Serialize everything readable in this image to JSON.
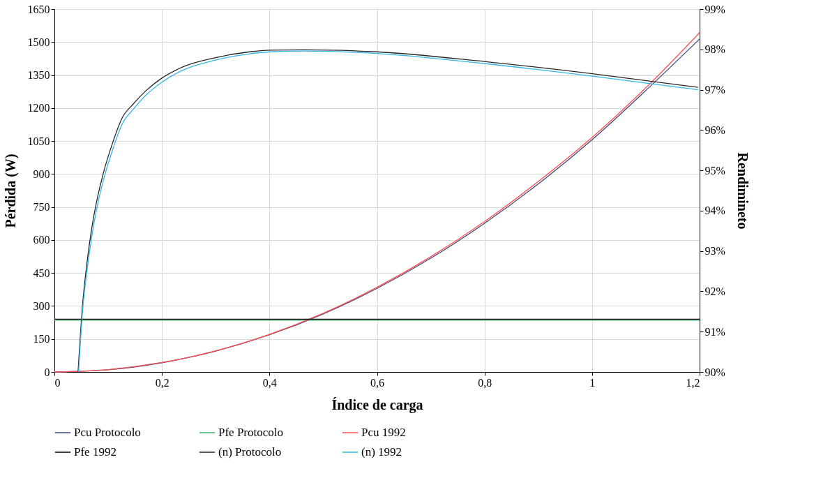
{
  "chart_data": {
    "type": "line",
    "xlabel": "Índice de carga",
    "ylabel": "Pérdida (W)",
    "y2label": "Rendimineto",
    "xlim": [
      0,
      1.2
    ],
    "xticks": [
      0,
      {
        "value": 0.2,
        "label": "0,2"
      },
      {
        "value": 0.4,
        "label": "0,4"
      },
      {
        "value": 0.6,
        "label": "0,6"
      },
      {
        "value": 0.8,
        "label": "0,8"
      },
      1,
      {
        "value": 1.2,
        "label": "1,2"
      }
    ],
    "ylim": [
      0,
      1650
    ],
    "yticks": [
      0,
      150,
      300,
      450,
      600,
      750,
      900,
      1050,
      1200,
      1350,
      1500,
      1650
    ],
    "y2lim": [
      90,
      99
    ],
    "y2ticks": [
      {
        "value": 90,
        "label": "90%"
      },
      {
        "value": 91,
        "label": "91%"
      },
      {
        "value": 92,
        "label": "92%"
      },
      {
        "value": 93,
        "label": "93%"
      },
      {
        "value": 94,
        "label": "94%"
      },
      {
        "value": 95,
        "label": "95%"
      },
      {
        "value": 96,
        "label": "96%"
      },
      {
        "value": 97,
        "label": "97%"
      },
      {
        "value": 98,
        "label": "98%"
      },
      {
        "value": 99,
        "label": "99%"
      }
    ],
    "grid": true,
    "legend": "bottom",
    "series": [
      {
        "name": "Pcu Protocolo",
        "color": "#404a80",
        "x": [
          0,
          0.1,
          0.2,
          0.3,
          0.4,
          0.5,
          0.6,
          0.7,
          0.8,
          0.9,
          1.0,
          1.1,
          1.2
        ],
        "values": [
          0,
          10,
          42,
          95,
          169,
          264,
          380,
          517,
          676,
          855,
          1056,
          1280,
          1514
        ]
      },
      {
        "name": "Pfe Protocolo",
        "color": "#3cb371",
        "x": [
          0,
          1.2
        ],
        "values": [
          235,
          235
        ]
      },
      {
        "name": "Pcu 1992",
        "color": "#ff5050",
        "x": [
          0,
          0.1,
          0.2,
          0.3,
          0.4,
          0.5,
          0.6,
          0.7,
          0.8,
          0.9,
          1.0,
          1.1,
          1.2
        ],
        "values": [
          0,
          11,
          43,
          96,
          171,
          267,
          385,
          524,
          684,
          866,
          1066,
          1292,
          1543
        ]
      },
      {
        "name": "Pfe 1992",
        "color": "#000000",
        "x": [
          0,
          1.2
        ],
        "values": [
          240,
          240
        ]
      },
      {
        "name": "(n) Protocolo",
        "color": "#262626",
        "axis": "y2",
        "x": [
          0.044,
          0.052,
          0.061,
          0.07,
          0.078,
          0.091,
          0.108,
          0.126,
          0.147,
          0.169,
          0.199,
          0.238,
          0.298,
          0.363,
          0.402,
          0.465,
          0.599,
          0.799,
          0.998,
          1.197
        ],
        "values": [
          90,
          91.61,
          92.75,
          93.61,
          94.19,
          94.93,
          95.67,
          96.3,
          96.65,
          96.96,
          97.28,
          97.56,
          97.79,
          97.94,
          97.98,
          97.99,
          97.94,
          97.7,
          97.4,
          97.06
        ]
      },
      {
        "name": "(n) 1992",
        "color": "#33b5e5",
        "axis": "y2",
        "x": [
          0.045,
          0.052,
          0.061,
          0.07,
          0.078,
          0.091,
          0.108,
          0.126,
          0.147,
          0.169,
          0.199,
          0.238,
          0.298,
          0.363,
          0.402,
          0.465,
          0.599,
          0.799,
          0.998,
          1.197
        ],
        "values": [
          90,
          91.45,
          92.55,
          93.4,
          94.0,
          94.75,
          95.5,
          96.15,
          96.52,
          96.85,
          97.18,
          97.48,
          97.73,
          97.89,
          97.94,
          97.96,
          97.9,
          97.65,
          97.34,
          97.0
        ]
      }
    ]
  }
}
